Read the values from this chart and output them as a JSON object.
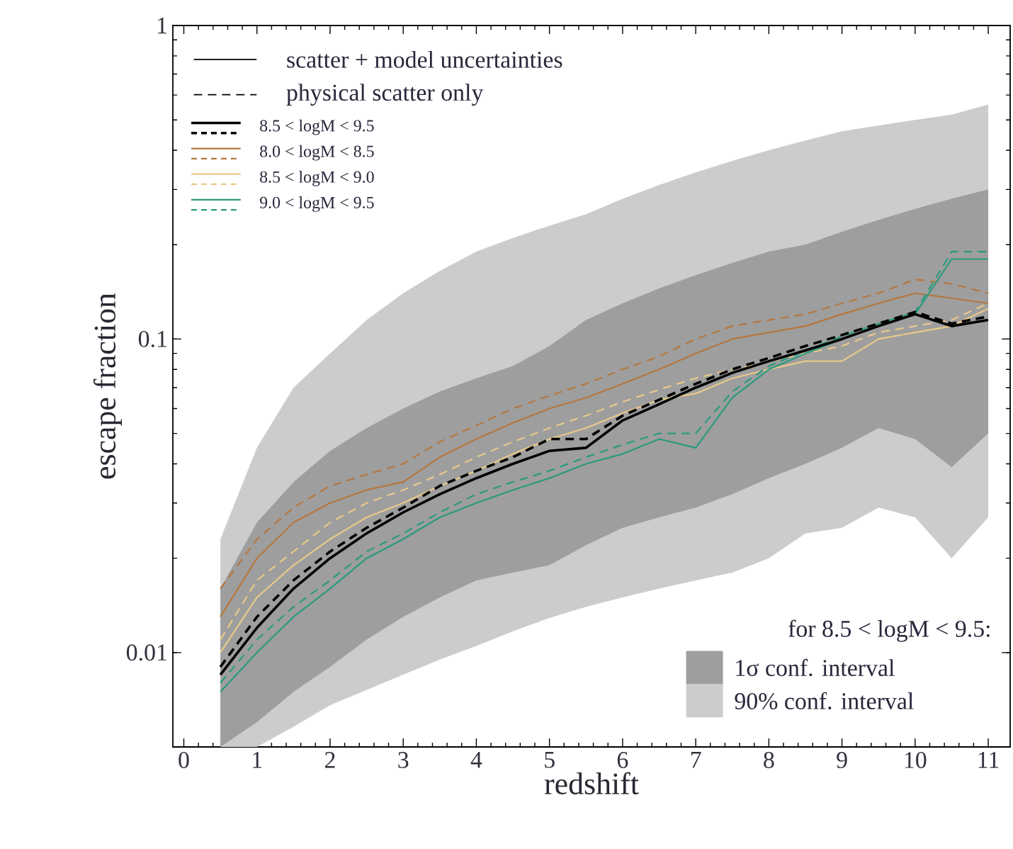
{
  "chart_data": {
    "type": "line",
    "xlabel": "redshift",
    "ylabel": "escape fraction",
    "log": "y",
    "xlim": [
      -0.15,
      11.3
    ],
    "xticks": [
      0,
      1,
      2,
      3,
      4,
      5,
      6,
      7,
      8,
      9,
      10,
      11
    ],
    "ylim": [
      0.005,
      1
    ],
    "yticks": [
      0.01,
      0.1,
      1
    ],
    "legend": "bottom right",
    "legend_title": "for 8.5 < logM < 9.5:",
    "annotations": [
      "scatter + model uncertainties",
      "physical scatter only"
    ],
    "x": [
      0.5,
      1,
      1.5,
      2,
      2.5,
      3,
      3.5,
      4,
      4.5,
      5,
      5.5,
      6,
      6.5,
      7,
      7.5,
      8,
      8.5,
      9,
      9.5,
      10,
      10.5,
      11
    ],
    "series": [
      {
        "type": "area",
        "name": "90% conf. interval",
        "color": "#cccccc",
        "values": [
          null,
          null,
          null,
          null,
          null,
          null,
          null,
          null,
          null,
          null,
          null,
          null,
          null,
          null,
          null,
          null,
          null,
          null,
          null,
          null,
          null,
          null
        ],
        "lower": [
          0.005,
          0.005,
          0.0058,
          0.0068,
          0.0076,
          0.0085,
          0.0095,
          0.0105,
          0.0117,
          0.0129,
          0.014,
          0.015,
          0.016,
          0.017,
          0.018,
          0.02,
          0.024,
          0.025,
          0.029,
          0.027,
          0.02,
          0.027
        ],
        "upper": [
          0.023,
          0.045,
          0.07,
          0.09,
          0.115,
          0.14,
          0.165,
          0.19,
          0.21,
          0.23,
          0.25,
          0.28,
          0.31,
          0.34,
          0.37,
          0.4,
          0.43,
          0.46,
          0.48,
          0.5,
          0.52,
          0.56
        ]
      },
      {
        "type": "area",
        "name": "1σ conf. interval",
        "color": "#9e9e9e",
        "values": [
          null,
          null,
          null,
          null,
          null,
          null,
          null,
          null,
          null,
          null,
          null,
          null,
          null,
          null,
          null,
          null,
          null,
          null,
          null,
          null,
          null,
          null
        ],
        "lower": [
          0.005,
          0.006,
          0.0075,
          0.009,
          0.011,
          0.013,
          0.015,
          0.017,
          0.018,
          0.019,
          0.022,
          0.025,
          0.027,
          0.029,
          0.032,
          0.036,
          0.04,
          0.045,
          0.052,
          0.048,
          0.039,
          0.05
        ],
        "upper": [
          0.016,
          0.026,
          0.035,
          0.044,
          0.052,
          0.06,
          0.068,
          0.075,
          0.082,
          0.095,
          0.115,
          0.13,
          0.145,
          0.16,
          0.175,
          0.19,
          0.2,
          0.22,
          0.24,
          0.26,
          0.28,
          0.3
        ]
      },
      {
        "name": "8.0 < logM < 8.5",
        "color": "#b5773f",
        "line_style": "solid",
        "values": [
          0.013,
          0.02,
          0.026,
          0.03,
          0.033,
          0.035,
          0.042,
          0.048,
          0.054,
          0.06,
          0.065,
          0.072,
          0.08,
          0.09,
          0.1,
          0.105,
          0.11,
          0.12,
          0.13,
          0.14,
          0.135,
          0.13
        ]
      },
      {
        "color": "#b5773f",
        "line_style": "dashed",
        "values": [
          0.016,
          0.023,
          0.029,
          0.034,
          0.037,
          0.04,
          0.047,
          0.053,
          0.06,
          0.066,
          0.072,
          0.08,
          0.088,
          0.1,
          0.11,
          0.115,
          0.12,
          0.13,
          0.14,
          0.155,
          0.15,
          0.14
        ]
      },
      {
        "name": "8.5 < logM < 9.0",
        "color": "#e8c98a",
        "line_style": "solid",
        "values": [
          0.01,
          0.015,
          0.019,
          0.023,
          0.027,
          0.03,
          0.034,
          0.038,
          0.043,
          0.048,
          0.052,
          0.058,
          0.064,
          0.067,
          0.075,
          0.08,
          0.085,
          0.085,
          0.1,
          0.105,
          0.11,
          0.125
        ]
      },
      {
        "color": "#e8c98a",
        "line_style": "dashed",
        "values": [
          0.011,
          0.017,
          0.021,
          0.026,
          0.03,
          0.033,
          0.037,
          0.042,
          0.047,
          0.052,
          0.057,
          0.063,
          0.069,
          0.075,
          0.08,
          0.085,
          0.09,
          0.095,
          0.105,
          0.11,
          0.115,
          0.13
        ]
      },
      {
        "name": "9.0 < logM < 9.5",
        "color": "#2a9a7e",
        "line_style": "solid",
        "values": [
          0.0075,
          0.01,
          0.013,
          0.016,
          0.02,
          0.023,
          0.027,
          0.03,
          0.033,
          0.036,
          0.04,
          0.043,
          0.048,
          0.045,
          0.065,
          0.08,
          0.09,
          0.1,
          0.11,
          0.12,
          0.18,
          0.18
        ]
      },
      {
        "color": "#2a9a7e",
        "line_style": "dashed",
        "values": [
          0.008,
          0.011,
          0.014,
          0.017,
          0.021,
          0.024,
          0.028,
          0.032,
          0.035,
          0.038,
          0.042,
          0.046,
          0.05,
          0.05,
          0.068,
          0.082,
          0.092,
          0.102,
          0.112,
          0.122,
          0.19,
          0.19
        ]
      },
      {
        "name": "8.5 < logM < 9.5",
        "color": "#000000",
        "line_style": "solid",
        "values": [
          0.0085,
          0.012,
          0.016,
          0.02,
          0.024,
          0.028,
          0.032,
          0.036,
          0.04,
          0.044,
          0.045,
          0.055,
          0.062,
          0.07,
          0.078,
          0.085,
          0.092,
          0.1,
          0.11,
          0.12,
          0.11,
          0.115
        ]
      },
      {
        "color": "#000000",
        "line_style": "dashed",
        "values": [
          0.009,
          0.013,
          0.017,
          0.021,
          0.025,
          0.029,
          0.034,
          0.038,
          0.042,
          0.048,
          0.048,
          0.057,
          0.064,
          0.072,
          0.08,
          0.087,
          0.095,
          0.103,
          0.112,
          0.122,
          0.112,
          0.118
        ]
      }
    ]
  }
}
